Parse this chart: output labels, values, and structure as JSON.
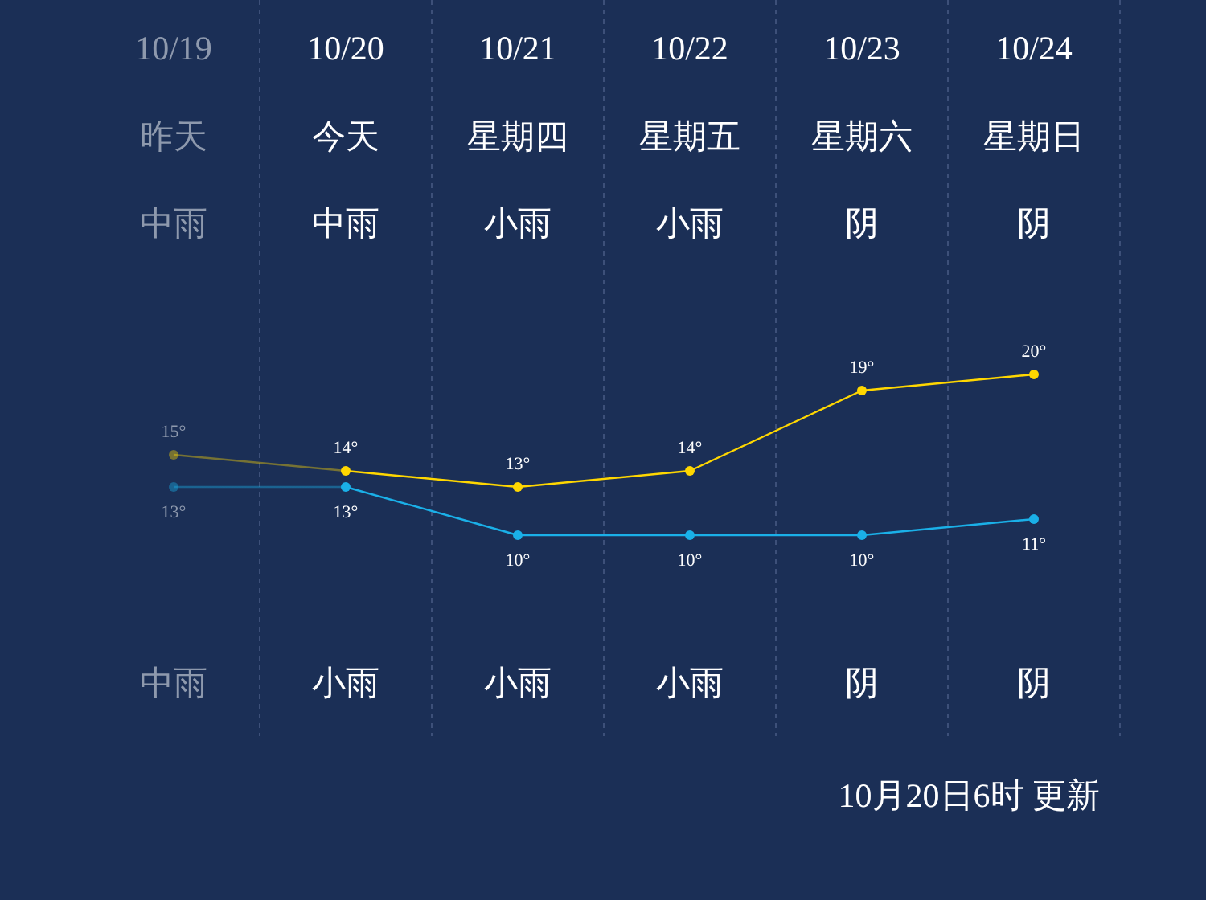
{
  "chart_data": {
    "type": "line",
    "categories": [
      "10/19",
      "10/20",
      "10/21",
      "10/22",
      "10/23",
      "10/24"
    ],
    "series": [
      {
        "color": "#ffd700",
        "values": [
          15,
          14,
          13,
          14,
          19,
          20
        ],
        "value_labels": [
          "15°",
          "14°",
          "13°",
          "14°",
          "19°",
          "20°"
        ]
      },
      {
        "color": "#1ab0e8",
        "values": [
          13,
          13,
          10,
          10,
          10,
          11
        ],
        "value_labels": [
          "13°",
          "13°",
          "10°",
          "10°",
          "10°",
          "11°"
        ]
      }
    ],
    "marker": "circle",
    "grid": "x",
    "annotations": [
      "昨天",
      "今天",
      "星期四",
      "星期五",
      "星期六",
      "星期日",
      "中雨",
      "中雨",
      "小雨",
      "小雨",
      "阴",
      "阴",
      "中雨",
      "小雨",
      "小雨",
      "小雨",
      "阴",
      "阴",
      "10月20日6时 更新"
    ]
  }
}
